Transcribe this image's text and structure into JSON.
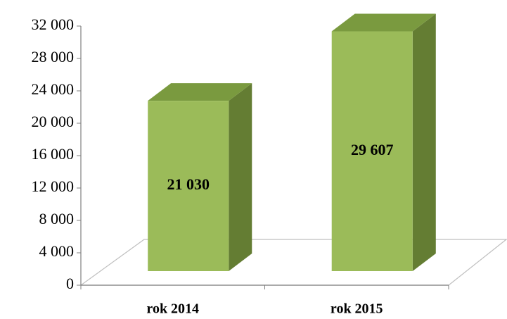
{
  "chart_data": {
    "type": "bar3d",
    "categories": [
      "rok 2014",
      "rok 2015"
    ],
    "values": [
      21030,
      29607
    ],
    "value_labels": [
      "21 030",
      "29 607"
    ],
    "color": "#9bbb59",
    "ylim": [
      0,
      32000
    ],
    "yticks": [
      0,
      {
        "value": 4000,
        "label": "4 000"
      },
      {
        "value": 8000,
        "label": "8 000"
      },
      {
        "value": 12000,
        "label": "12 000"
      },
      {
        "value": 16000,
        "label": "16 000"
      },
      {
        "value": 20000,
        "label": "20 000"
      },
      {
        "value": 24000,
        "label": "24 000"
      },
      {
        "value": 28000,
        "label": "28 000"
      },
      {
        "value": 32000,
        "label": "32 000"
      }
    ]
  }
}
